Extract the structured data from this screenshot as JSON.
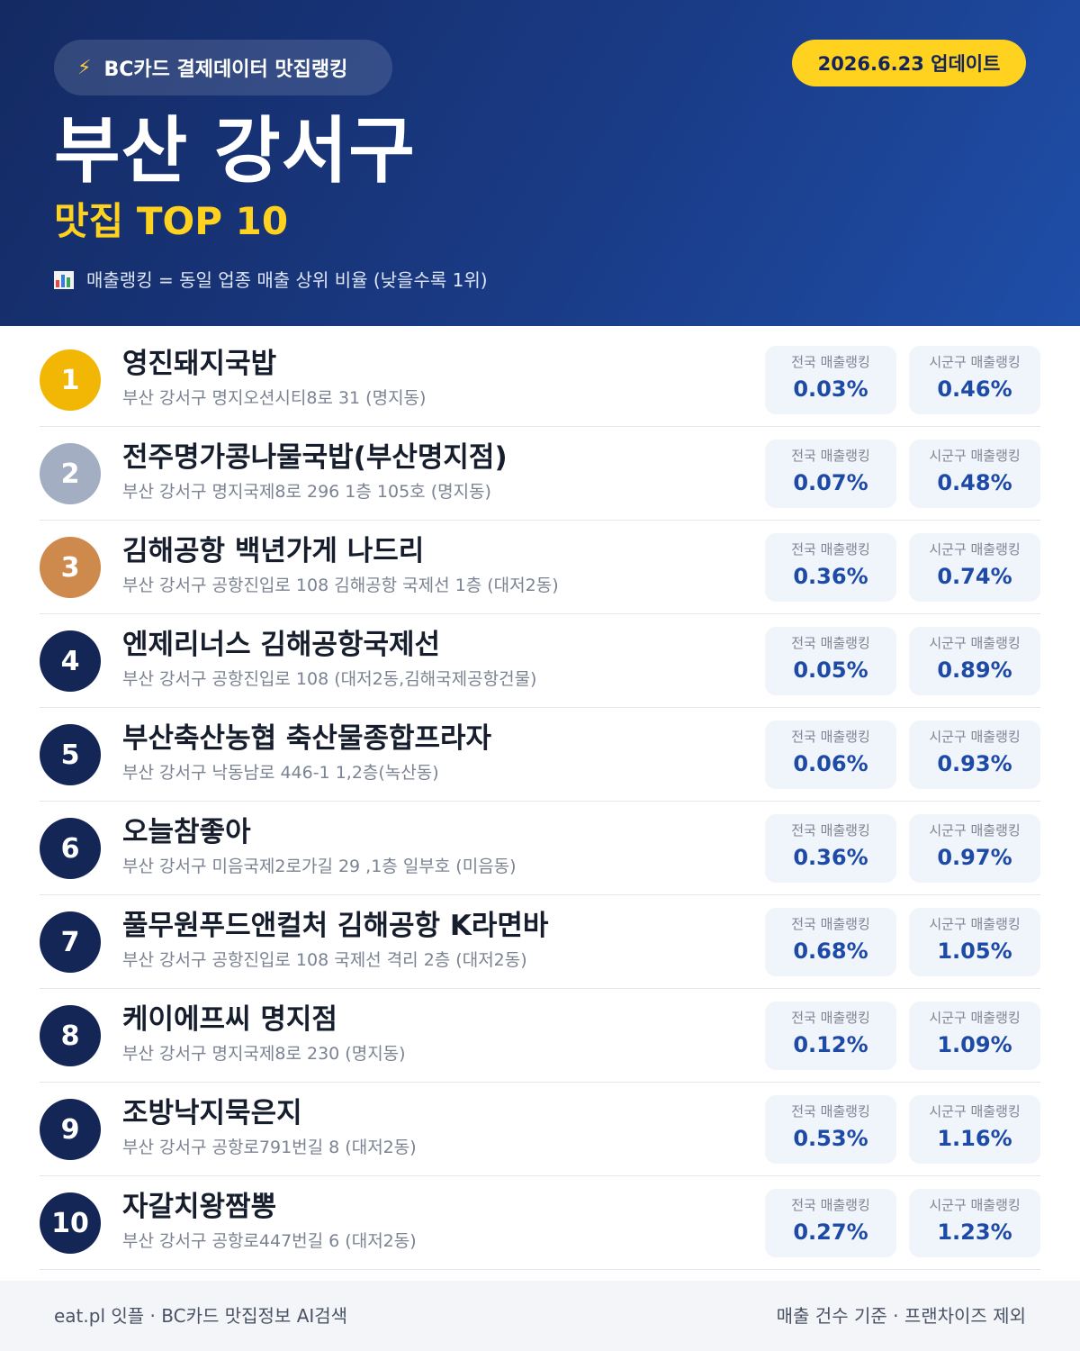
{
  "header": {
    "badge_icon": "lightning-bolt-icon",
    "badge_text": "BC카드 결제데이터 맛집랭킹",
    "update_label": "2026.6.23 업데이트",
    "title": "부산 강서구",
    "subtitle": "맛집 TOP 10",
    "note_icon": "bar-chart-icon",
    "note": "매출랭킹 = 동일 업종 매출 상위 비율 (낮을수록 1위)"
  },
  "labels": {
    "national": "전국 매출랭킹",
    "local": "시군구 매출랭킹"
  },
  "colors": {
    "gold": "#f2b705",
    "silver": "#a3aec2",
    "bronze": "#cd8a4c",
    "navy": "#142655",
    "accent": "#ffd21f",
    "value_blue": "#1c4aa6"
  },
  "restaurants": [
    {
      "rank": "1",
      "name": "영진돼지국밥",
      "address": "부산 강서구 명지오션시티8로 31 (명지동)",
      "national": "0.03%",
      "local": "0.46%"
    },
    {
      "rank": "2",
      "name": "전주명가콩나물국밥(부산명지점)",
      "address": "부산 강서구 명지국제8로 296 1층 105호 (명지동)",
      "national": "0.07%",
      "local": "0.48%"
    },
    {
      "rank": "3",
      "name": "김해공항 백년가게 나드리",
      "address": "부산 강서구 공항진입로 108 김해공항 국제선 1층 (대저2동)",
      "national": "0.36%",
      "local": "0.74%"
    },
    {
      "rank": "4",
      "name": "엔제리너스 김해공항국제선",
      "address": "부산 강서구 공항진입로 108 (대저2동,김해국제공항건물)",
      "national": "0.05%",
      "local": "0.89%"
    },
    {
      "rank": "5",
      "name": "부산축산농협 축산물종합프라자",
      "address": "부산 강서구 낙동남로 446-1 1,2층(녹산동)",
      "national": "0.06%",
      "local": "0.93%"
    },
    {
      "rank": "6",
      "name": "오늘참좋아",
      "address": "부산 강서구 미음국제2로가길 29 ,1층 일부호 (미음동)",
      "national": "0.36%",
      "local": "0.97%"
    },
    {
      "rank": "7",
      "name": "풀무원푸드앤컬처 김해공항 K라면바",
      "address": "부산 강서구 공항진입로 108 국제선 격리 2층 (대저2동)",
      "national": "0.68%",
      "local": "1.05%"
    },
    {
      "rank": "8",
      "name": "케이에프씨 명지점",
      "address": "부산 강서구 명지국제8로 230 (명지동)",
      "national": "0.12%",
      "local": "1.09%"
    },
    {
      "rank": "9",
      "name": "조방낙지묵은지",
      "address": "부산 강서구 공항로791번길 8 (대저2동)",
      "national": "0.53%",
      "local": "1.16%"
    },
    {
      "rank": "10",
      "name": "자갈치왕짬뽕",
      "address": "부산 강서구 공항로447번길 6 (대저2동)",
      "national": "0.27%",
      "local": "1.23%"
    }
  ],
  "footer": {
    "left": "eat.pl 잇플 · BC카드 맛집정보 AI검색",
    "right": "매출 건수 기준 · 프랜차이즈 제외"
  }
}
